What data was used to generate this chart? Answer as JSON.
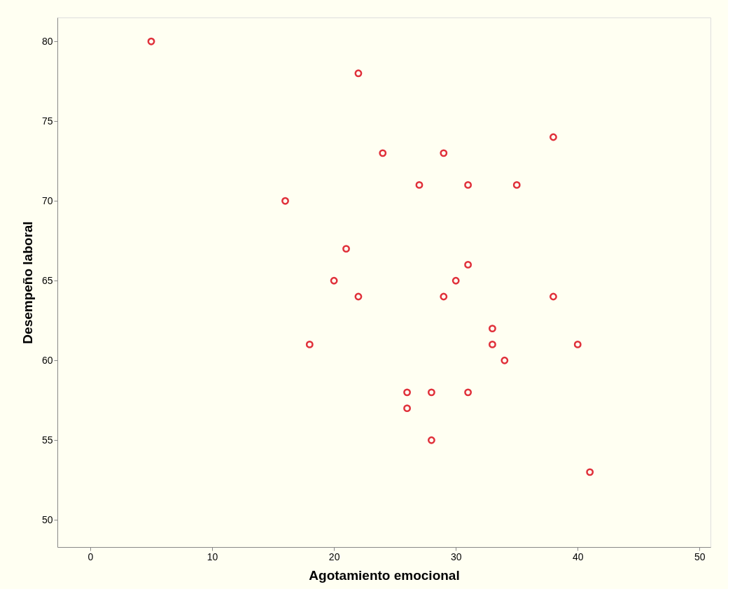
{
  "chart_data": {
    "type": "scatter",
    "xlabel": "Agotamiento emocional",
    "ylabel": "Desempeño laboral",
    "x": [
      5,
      22,
      24,
      29,
      38,
      27,
      31,
      35,
      16,
      21,
      31,
      20,
      30,
      22,
      29,
      38,
      33,
      18,
      33,
      40,
      34,
      26,
      28,
      31,
      26,
      28,
      41
    ],
    "series": [
      {
        "color": "#e0303a",
        "values": [
          80,
          78,
          73,
          73,
          74,
          71,
          71,
          71,
          70,
          67,
          66,
          65,
          65,
          64,
          64,
          64,
          62,
          61,
          61,
          61,
          60,
          58,
          58,
          58,
          57,
          55,
          53
        ]
      }
    ],
    "xlim": [
      -2.7,
      50.9
    ],
    "ylim": [
      48.3,
      81.5
    ],
    "xticks": [
      0,
      10,
      20,
      30,
      40,
      50
    ],
    "yticks": [
      50,
      55,
      60,
      65,
      70,
      75,
      80
    ],
    "marker": "circle",
    "grid": false,
    "legend": false
  }
}
